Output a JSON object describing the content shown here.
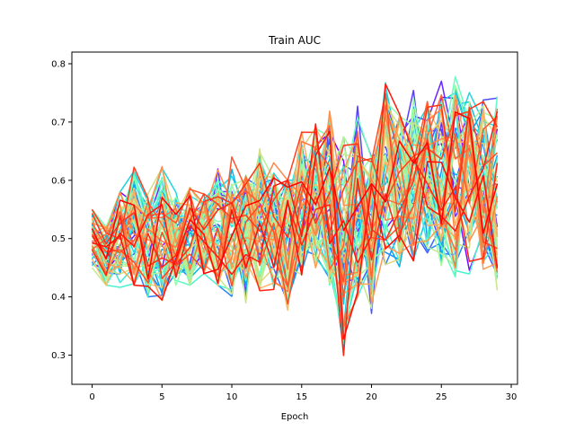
{
  "chart_data": {
    "type": "line",
    "title": "Train AUC",
    "xlabel": "Epoch",
    "ylabel": "",
    "xlim": [
      -1.45,
      30.45
    ],
    "ylim": [
      0.25,
      0.82
    ],
    "xticks": [
      0,
      5,
      10,
      15,
      20,
      25,
      30
    ],
    "yticks": [
      0.3,
      0.4,
      0.5,
      0.6,
      0.7,
      0.8
    ],
    "grid": false,
    "legend": "none",
    "colormap": "rainbow",
    "series_count": 64,
    "x": [
      0,
      1,
      2,
      3,
      4,
      5,
      6,
      7,
      8,
      9,
      10,
      11,
      12,
      13,
      14,
      15,
      16,
      17,
      18,
      19,
      20,
      21,
      22,
      23,
      24,
      25,
      26,
      27,
      28,
      29
    ],
    "envelope": {
      "min": [
        0.45,
        0.42,
        0.41,
        0.42,
        0.4,
        0.38,
        0.42,
        0.42,
        0.44,
        0.42,
        0.4,
        0.36,
        0.4,
        0.4,
        0.33,
        0.42,
        0.45,
        0.42,
        0.27,
        0.38,
        0.33,
        0.42,
        0.42,
        0.45,
        0.44,
        0.42,
        0.4,
        0.42,
        0.43,
        0.38
      ],
      "max": [
        0.55,
        0.52,
        0.58,
        0.64,
        0.58,
        0.63,
        0.59,
        0.61,
        0.6,
        0.65,
        0.64,
        0.63,
        0.67,
        0.63,
        0.6,
        0.7,
        0.74,
        0.75,
        0.7,
        0.74,
        0.64,
        0.79,
        0.77,
        0.76,
        0.75,
        0.77,
        0.79,
        0.76,
        0.77,
        0.75
      ]
    },
    "mean": [
      0.505,
      0.475,
      0.51,
      0.52,
      0.49,
      0.51,
      0.495,
      0.5,
      0.505,
      0.52,
      0.52,
      0.51,
      0.54,
      0.53,
      0.5,
      0.56,
      0.58,
      0.57,
      0.5,
      0.56,
      0.52,
      0.61,
      0.6,
      0.61,
      0.61,
      0.61,
      0.61,
      0.6,
      0.6,
      0.58
    ]
  }
}
